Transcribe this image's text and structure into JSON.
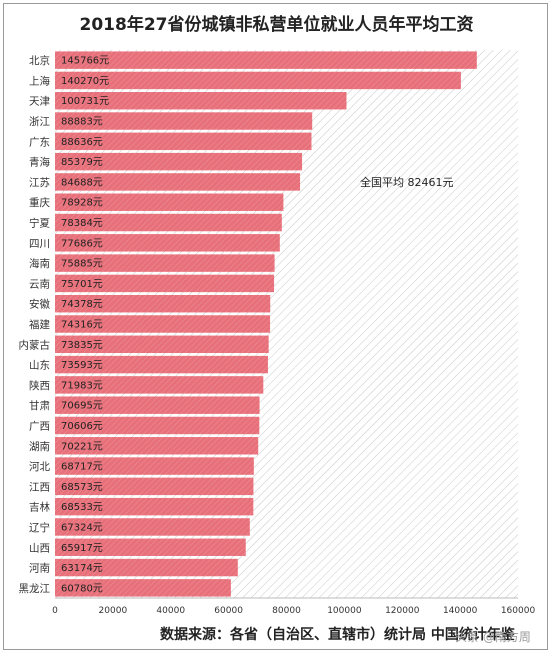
{
  "chart_data": {
    "type": "bar",
    "orientation": "horizontal",
    "title": "2018年27省份城镇非私营单位就业人员年平均工资",
    "categories": [
      "北京",
      "上海",
      "天津",
      "浙江",
      "广东",
      "青海",
      "江苏",
      "重庆",
      "宁夏",
      "四川",
      "海南",
      "云南",
      "安徽",
      "福建",
      "内蒙古",
      "山东",
      "陕西",
      "甘肃",
      "广西",
      "湖南",
      "河北",
      "江西",
      "吉林",
      "辽宁",
      "山西",
      "河南",
      "黑龙江"
    ],
    "values": [
      145766,
      140270,
      100731,
      88883,
      88636,
      85379,
      84688,
      78928,
      78384,
      77686,
      75885,
      75701,
      74378,
      74316,
      73835,
      73593,
      71983,
      70695,
      70606,
      70221,
      68717,
      68573,
      68533,
      67324,
      65917,
      63174,
      60780
    ],
    "value_labels": [
      "145766元",
      "140270元",
      "100731元",
      "88883元",
      "88636元",
      "85379元",
      "84688元",
      "78928元",
      "78384元",
      "77686元",
      "75885元",
      "75701元",
      "74378元",
      "74316元",
      "73835元",
      "73593元",
      "71983元",
      "70695元",
      "70606元",
      "70221元",
      "68717元",
      "68573元",
      "68533元",
      "67324元",
      "65917元",
      "63174元",
      "60780元"
    ],
    "xlim": [
      0,
      160000
    ],
    "x_ticks": [
      "0",
      "20000",
      "40000",
      "60000",
      "80000",
      "100000",
      "120000",
      "140000",
      "160000"
    ],
    "x_tick_values": [
      0,
      20000,
      40000,
      60000,
      80000,
      100000,
      120000,
      140000,
      160000
    ],
    "annotation": "全国平均 82461元",
    "bar_color": "#e8707a",
    "grid": false
  },
  "source_note": "数据来源：各省（自治区、直辖市）统计局 中国统计年鉴",
  "watermark": "头条 @南方周"
}
